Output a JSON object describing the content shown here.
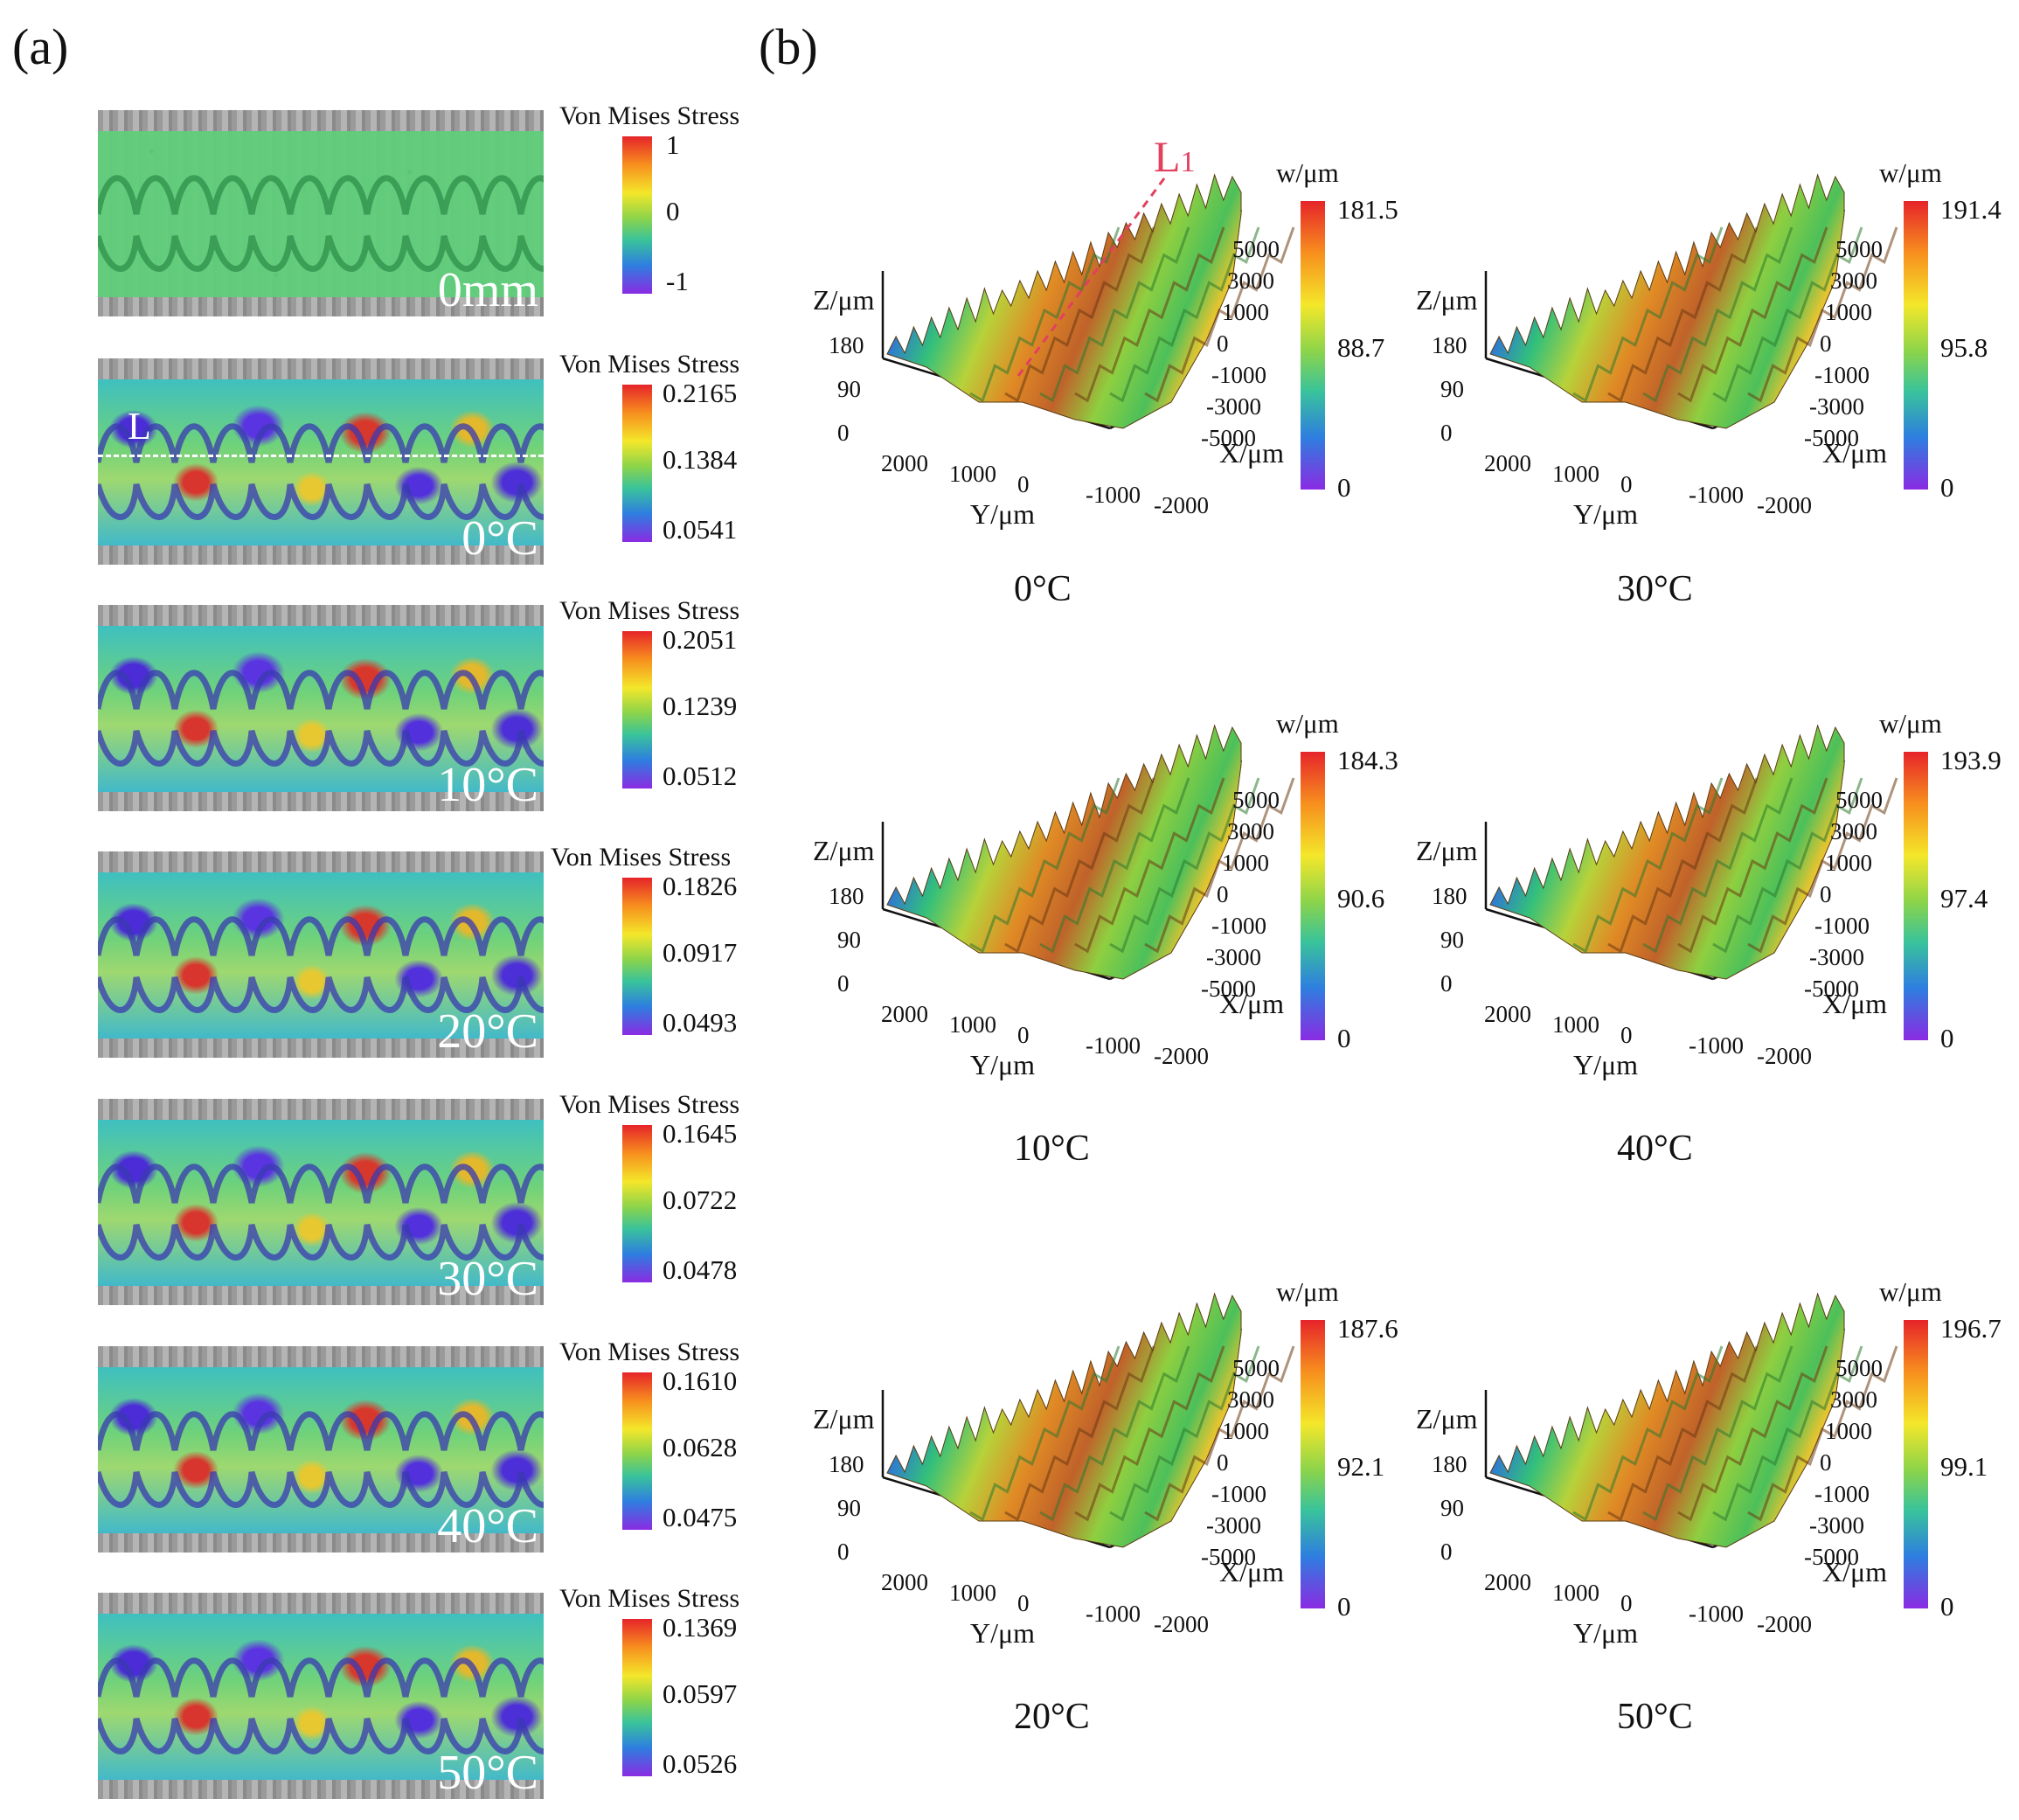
{
  "panel_a": {
    "label": "(a)",
    "colorbar_title": "Von Mises Stress",
    "strips": [
      {
        "condition": "0mm",
        "max": "1",
        "mid": "0",
        "min": "-1"
      },
      {
        "condition": "0°C",
        "max": "0.2165",
        "mid": "0.1384",
        "min": "0.0541",
        "line_label": "L"
      },
      {
        "condition": "10°C",
        "max": "0.2051",
        "mid": "0.1239",
        "min": "0.0512"
      },
      {
        "condition": "20°C",
        "max": "0.1826",
        "mid": "0.0917",
        "min": "0.0493"
      },
      {
        "condition": "30°C",
        "max": "0.1645",
        "mid": "0.0722",
        "min": "0.0478"
      },
      {
        "condition": "40°C",
        "max": "0.1610",
        "mid": "0.0628",
        "min": "0.0475"
      },
      {
        "condition": "50°C",
        "max": "0.1369",
        "mid": "0.0597",
        "min": "0.0526"
      }
    ]
  },
  "panel_b": {
    "label": "(b)",
    "z_axis": "Z/μm",
    "x_axis": "X/μm",
    "y_axis": "Y/μm",
    "w_unit": "w/μm",
    "z_ticks": [
      "180",
      "90",
      "0"
    ],
    "x_ticks": [
      "5000",
      "3000",
      "1000",
      "0",
      "-1000",
      "-3000",
      "-5000"
    ],
    "y_ticks": [
      "2000",
      "1000",
      "0",
      "-1000",
      "-2000"
    ],
    "line_label": "L1",
    "plots": [
      {
        "temp": "0°C",
        "max": "181.5",
        "mid": "88.7",
        "min": "0"
      },
      {
        "temp": "30°C",
        "max": "191.4",
        "mid": "95.8",
        "min": "0"
      },
      {
        "temp": "10°C",
        "max": "184.3",
        "mid": "90.6",
        "min": "0"
      },
      {
        "temp": "40°C",
        "max": "193.9",
        "mid": "97.4",
        "min": "0"
      },
      {
        "temp": "20°C",
        "max": "187.6",
        "mid": "92.1",
        "min": "0"
      },
      {
        "temp": "50°C",
        "max": "196.7",
        "mid": "99.1",
        "min": "0"
      }
    ]
  }
}
